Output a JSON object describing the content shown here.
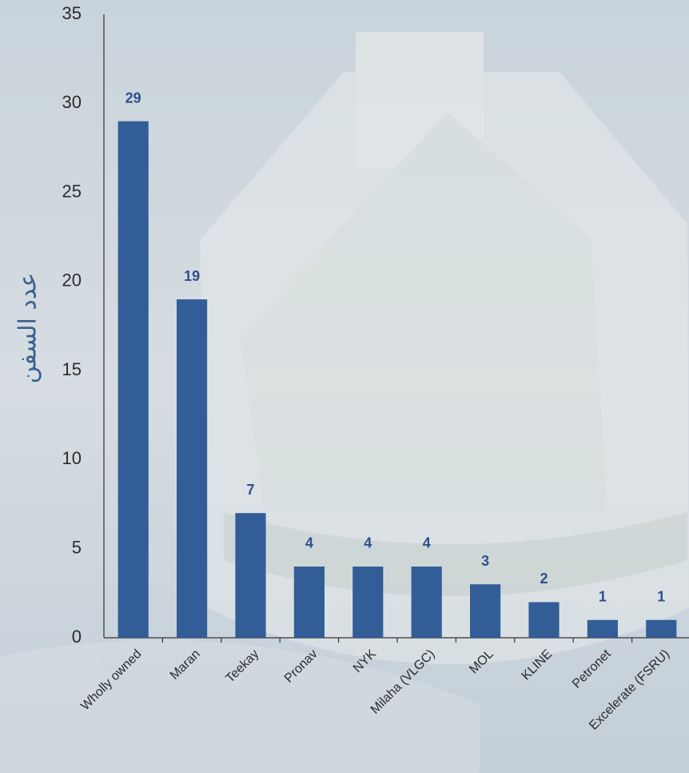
{
  "chart_data": {
    "type": "bar",
    "y_label": "عدد السفن",
    "categories": [
      "Wholly owned",
      "Maran",
      "Teekay",
      "Pronav",
      "NYK",
      "Milaha (VLGC)",
      "MOL",
      "KLINE",
      "Petronet",
      "Excelerate (FSRU)"
    ],
    "values": [
      29,
      19,
      7,
      4,
      4,
      4,
      3,
      2,
      1,
      1
    ],
    "color": "#335d96",
    "ylim": [
      0,
      35
    ],
    "yticks": [
      0,
      5,
      10,
      15,
      20,
      25,
      30,
      35
    ],
    "grid": false
  }
}
